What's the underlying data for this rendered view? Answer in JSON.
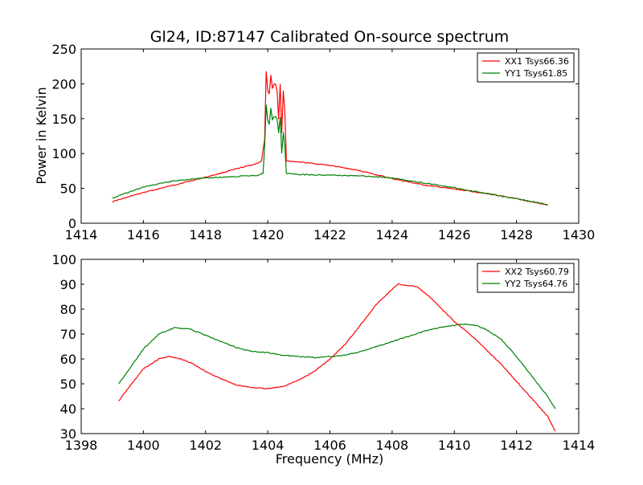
{
  "chart_data": [
    {
      "type": "line",
      "title": "Gl24, ID:87147 Calibrated On-source spectrum",
      "xlabel": "",
      "ylabel": "Power in Kelvin",
      "xlim": [
        1414,
        1430
      ],
      "ylim": [
        0,
        250
      ],
      "xticks": [
        "1414",
        "1416",
        "1418",
        "1420",
        "1422",
        "1424",
        "1426",
        "1428",
        "1430"
      ],
      "yticks": [
        "0",
        "50",
        "100",
        "150",
        "200",
        "250"
      ],
      "grid": false,
      "legend_position": "top-right",
      "series": [
        {
          "name": "XX1 Tsys66.36",
          "color": "#ff0000",
          "x": [
            1415.0,
            1416.0,
            1417.0,
            1418.0,
            1419.0,
            1419.6,
            1419.8,
            1419.9,
            1419.95,
            1420.0,
            1420.05,
            1420.1,
            1420.15,
            1420.2,
            1420.25,
            1420.3,
            1420.35,
            1420.4,
            1420.45,
            1420.5,
            1420.55,
            1420.6,
            1420.65,
            1420.7,
            1421.0,
            1422.0,
            1423.0,
            1424.0,
            1425.0,
            1426.0,
            1427.0,
            1428.0,
            1429.0
          ],
          "y": [
            31,
            44,
            55,
            66,
            78,
            85,
            89,
            120,
            217,
            190,
            186,
            212,
            194,
            199,
            200,
            190,
            150,
            200,
            130,
            190,
            160,
            90,
            89,
            89,
            88,
            83,
            75,
            64,
            55,
            49,
            43,
            35,
            26
          ]
        },
        {
          "name": "YY1 Tsys61.85",
          "color": "#008000",
          "x": [
            1415.0,
            1416.0,
            1417.0,
            1418.0,
            1419.0,
            1419.7,
            1419.85,
            1419.9,
            1419.95,
            1420.0,
            1420.05,
            1420.1,
            1420.15,
            1420.2,
            1420.25,
            1420.3,
            1420.35,
            1420.4,
            1420.45,
            1420.5,
            1420.55,
            1420.6,
            1420.7,
            1421.0,
            1422.0,
            1423.0,
            1424.0,
            1425.0,
            1426.0,
            1427.0,
            1428.0,
            1429.0
          ],
          "y": [
            36,
            52,
            61,
            65,
            67,
            69,
            72,
            110,
            169,
            148,
            142,
            165,
            148,
            152,
            153,
            150,
            130,
            152,
            100,
            130,
            110,
            72,
            71,
            70,
            69,
            68,
            65,
            58,
            51,
            43,
            35,
            27
          ]
        }
      ]
    },
    {
      "type": "line",
      "title": "",
      "xlabel": "Frequency (MHz)",
      "ylabel": "",
      "xlim": [
        1398,
        1414
      ],
      "ylim": [
        30,
        100
      ],
      "xticks": [
        "1398",
        "1400",
        "1402",
        "1404",
        "1406",
        "1408",
        "1410",
        "1412",
        "1414"
      ],
      "yticks": [
        "30",
        "40",
        "50",
        "60",
        "70",
        "80",
        "90",
        "100"
      ],
      "grid": false,
      "legend_position": "top-right",
      "series": [
        {
          "name": "XX2 Tsys60.79",
          "color": "#ff0000",
          "x": [
            1399.2,
            1399.5,
            1400.0,
            1400.5,
            1400.8,
            1401.2,
            1401.6,
            1402.0,
            1402.5,
            1403.0,
            1403.5,
            1404.0,
            1404.5,
            1405.0,
            1405.5,
            1406.0,
            1406.5,
            1407.0,
            1407.5,
            1408.0,
            1408.2,
            1408.5,
            1408.8,
            1409.2,
            1409.6,
            1410.0,
            1410.5,
            1411.0,
            1411.5,
            1412.0,
            1412.5,
            1413.0,
            1413.25
          ],
          "y": [
            43,
            48,
            56,
            60,
            61,
            60,
            58,
            55,
            52,
            49.5,
            48.5,
            48,
            49,
            51.5,
            55,
            60,
            66,
            74,
            82,
            88,
            90,
            89.5,
            89,
            85,
            80,
            75,
            70,
            64,
            58,
            51,
            44,
            37,
            31
          ]
        },
        {
          "name": "YY2 Tsys64.76",
          "color": "#008000",
          "x": [
            1399.2,
            1399.5,
            1400.0,
            1400.5,
            1401.0,
            1401.5,
            1402.0,
            1402.5,
            1403.0,
            1403.5,
            1404.0,
            1404.5,
            1405.0,
            1405.5,
            1406.0,
            1406.5,
            1407.0,
            1407.5,
            1408.0,
            1408.5,
            1409.0,
            1409.5,
            1410.0,
            1410.3,
            1410.7,
            1411.0,
            1411.5,
            1412.0,
            1412.5,
            1413.0,
            1413.25
          ],
          "y": [
            50,
            55,
            64,
            70,
            72.5,
            72,
            69.5,
            67,
            64.5,
            63,
            62.5,
            61.5,
            61,
            60.5,
            61,
            61.5,
            63,
            65,
            67,
            69,
            71,
            72.5,
            73.5,
            74,
            73.5,
            72,
            68,
            61,
            53,
            45,
            40
          ]
        }
      ]
    }
  ]
}
